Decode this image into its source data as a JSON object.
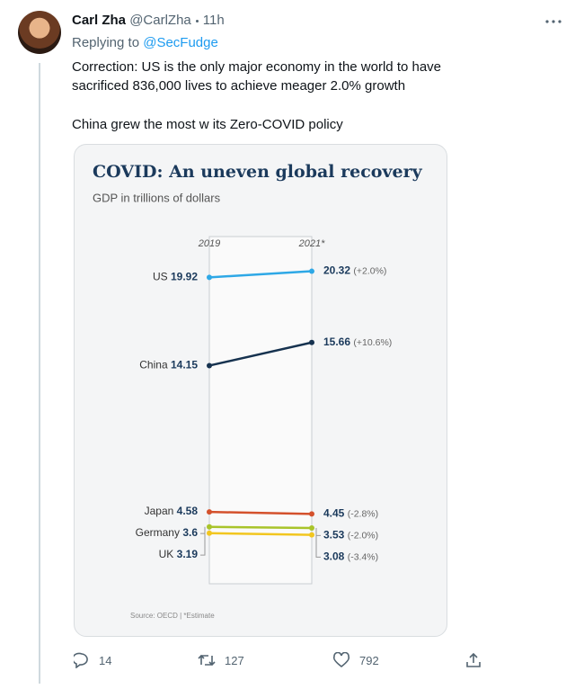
{
  "tweet": {
    "name": "Carl Zha",
    "handle": "@CarlZha",
    "time": "11h",
    "replying_label": "Replying to",
    "replying_to": "@SecFudge",
    "paragraphs": [
      "Correction: US is the only major economy in the world to have sacrificed 836,000 lives to achieve meager 2.0% growth",
      "China grew the most w its Zero-COVID policy"
    ]
  },
  "chart_data": {
    "type": "slope",
    "title": "COVID: An uneven global recovery",
    "subtitle": "GDP in trillions of dollars",
    "categories": [
      "2019",
      "2021*"
    ],
    "ylim": [
      0,
      21.5
    ],
    "source": "Source: OECD | *Estimate",
    "series": [
      {
        "name": "US",
        "color": "#2ea8e6",
        "values": [
          19.92,
          20.32
        ],
        "change": 2.0,
        "change_label": "(+2.0%)"
      },
      {
        "name": "China",
        "color": "#16324f",
        "values": [
          14.15,
          15.66
        ],
        "change": 10.6,
        "change_label": "(+10.6%)"
      },
      {
        "name": "Japan",
        "color": "#d4512c",
        "values": [
          4.58,
          4.45
        ],
        "change": -2.8,
        "change_label": "(-2.8%)"
      },
      {
        "name": "Germany",
        "color": "#a9c42a",
        "values": [
          3.6,
          3.53
        ],
        "change": -2.0,
        "change_label": "(-2.0%)"
      },
      {
        "name": "UK",
        "color": "#f2c61f",
        "values": [
          3.19,
          3.08
        ],
        "change": -3.4,
        "change_label": "(-3.4%)"
      }
    ]
  },
  "actions": {
    "replies": 14,
    "retweets": 127,
    "likes": 792
  }
}
